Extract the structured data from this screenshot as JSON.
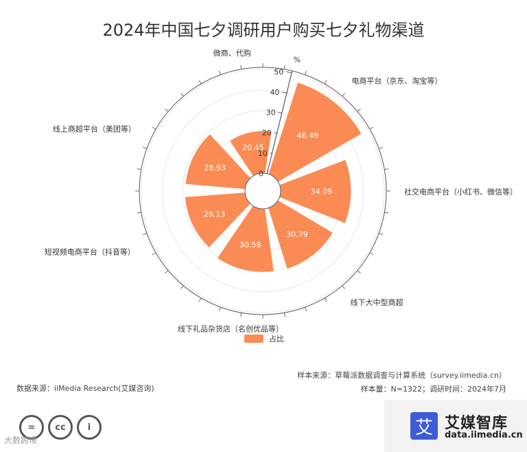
{
  "title": "2024年中国七夕调研用户购买七夕礼物渠道",
  "chart_data": {
    "type": "polar-bar",
    "unit": "%",
    "radial_ticks": [
      0,
      10,
      20,
      30,
      40,
      50
    ],
    "rmax": 50,
    "categories": [
      "电商平台（京东、淘宝等）",
      "社交电商平台（小红书、微信等）",
      "线下大中型商超",
      "线下礼品杂货店（名创优品等）",
      "短视频电商平台（抖音等）",
      "线上商超平台（美团等）",
      "微商、代购"
    ],
    "values": [
      46.49,
      34.09,
      30.79,
      30.58,
      29.13,
      28.93,
      20.45
    ],
    "value_labels": [
      "46.49",
      "34.09",
      "30.79",
      "30.58",
      "29.13",
      "28.93",
      "20.45"
    ],
    "series": [
      {
        "name": "占比"
      }
    ],
    "color": "#FB8B54",
    "legend_position": "bottom"
  },
  "legend": {
    "label": "占比"
  },
  "footer": {
    "sample_source": "样本来源：草莓派数据调查与计算系统（survey.iimedia.cn）",
    "sample_size": "样本量：N=1322；调研时间：2024年7月",
    "data_source": "数据来源：iiMedia Research(艾媒咨询)"
  },
  "license_icons": [
    "=",
    "cc",
    "i"
  ],
  "watermark": "大数跨境",
  "brand": {
    "logo_char": "艾",
    "name": "艾媒智库",
    "url": "data.iimedia.cn"
  }
}
